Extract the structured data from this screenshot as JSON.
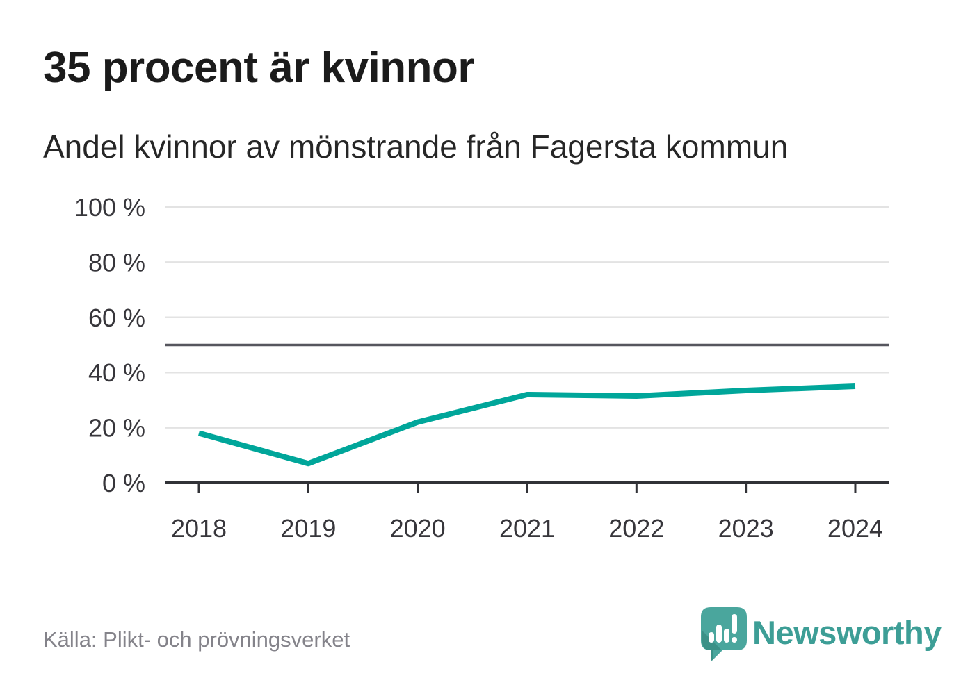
{
  "header": {
    "title": "35 procent är kvinnor",
    "subtitle": "Andel kvinnor av mönstrande från Fagersta kommun"
  },
  "chart_data": {
    "type": "line",
    "title": "35 procent är kvinnor",
    "subtitle": "Andel kvinnor av mönstrande från Fagersta kommun",
    "x": [
      2018,
      2019,
      2020,
      2021,
      2022,
      2023,
      2024
    ],
    "series": [
      {
        "name": "Andel kvinnor av mönstrande, Fagersta kommun",
        "values": [
          18,
          7,
          22,
          32,
          31.5,
          33.5,
          35
        ]
      }
    ],
    "xlabel": "",
    "ylabel": "",
    "ylim": [
      0,
      100
    ],
    "yticks": [
      0,
      20,
      40,
      60,
      80,
      100
    ],
    "ytick_labels": [
      "0 %",
      "20 %",
      "40 %",
      "60 %",
      "80 %",
      "100 %"
    ],
    "reference_line": 50,
    "grid": true,
    "legend": false,
    "line_color": "#00a69a"
  },
  "footer": {
    "source": "Källa: Plikt- och prövningsverket",
    "brand": "Newsworthy"
  },
  "colors": {
    "accent_teal": "#00a69a",
    "grid": "#e3e3e3",
    "reference_line": "#56565e",
    "axis": "#313237",
    "tick_text": "#37363b",
    "title_text": "#1b1b1b",
    "source_text": "#84838a",
    "logo_teal": "#4aa69d",
    "logo_teal_dark": "#388d84",
    "logo_text_teal": "#3d9e96"
  },
  "icons": {
    "brand_icon": "newsworthy-speech-bubble-barchart-icon"
  }
}
